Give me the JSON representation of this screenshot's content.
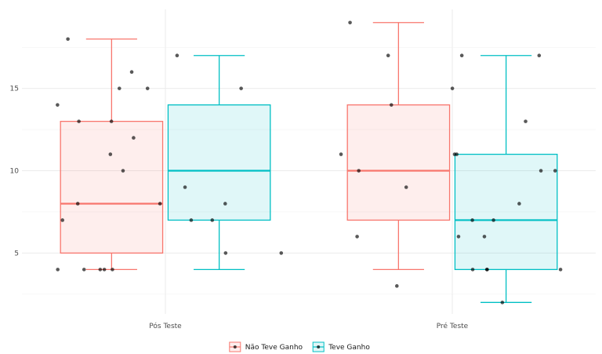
{
  "chart_data": {
    "type": "box",
    "title": "",
    "xlabel": "",
    "ylabel": "",
    "categories": [
      "Pós Teste",
      "Pré Teste"
    ],
    "ylim": [
      1.3,
      19.8
    ],
    "yticks": [
      5,
      10,
      15
    ],
    "grid": true,
    "legend_position": "bottom",
    "series": [
      {
        "name": "Não Teve Ganho",
        "color": "#F8766D",
        "boxes": [
          {
            "category": "Pós Teste",
            "whisker_low": 4,
            "q1": 5,
            "median": 8,
            "q3": 13,
            "whisker_high": 18
          },
          {
            "category": "Pré Teste",
            "whisker_low": 4,
            "q1": 7,
            "median": 10,
            "q3": 14,
            "whisker_high": 19
          }
        ],
        "points": [
          {
            "category": "Pós Teste",
            "y": [
              11,
              15,
              7,
              13,
              4,
              4,
              4,
              8,
              10,
              4,
              4,
              15,
              16,
              14,
              13,
              8,
              12,
              18
            ]
          },
          {
            "category": "Pré Teste",
            "y": [
              9,
              3,
              6,
              11,
              11,
              6,
              19,
              14,
              11,
              10,
              17
            ]
          }
        ]
      },
      {
        "name": "Teve Ganho",
        "color": "#00BFC4",
        "boxes": [
          {
            "category": "Pós Teste",
            "whisker_low": 4,
            "q1": 7,
            "median": 10,
            "q3": 14,
            "whisker_high": 17
          },
          {
            "category": "Pré Teste",
            "whisker_low": 2,
            "q1": 4,
            "median": 7,
            "q3": 11,
            "whisker_high": 17
          }
        ],
        "points": [
          {
            "category": "Pós Teste",
            "y": [
              5,
              15,
              7,
              17,
              5,
              7,
              9,
              8
            ]
          },
          {
            "category": "Pré Teste",
            "y": [
              6,
              17,
              10,
              4,
              4,
              15,
              4,
              4,
              10,
              2,
              7,
              8,
              7,
              17,
              13
            ]
          }
        ]
      }
    ]
  }
}
